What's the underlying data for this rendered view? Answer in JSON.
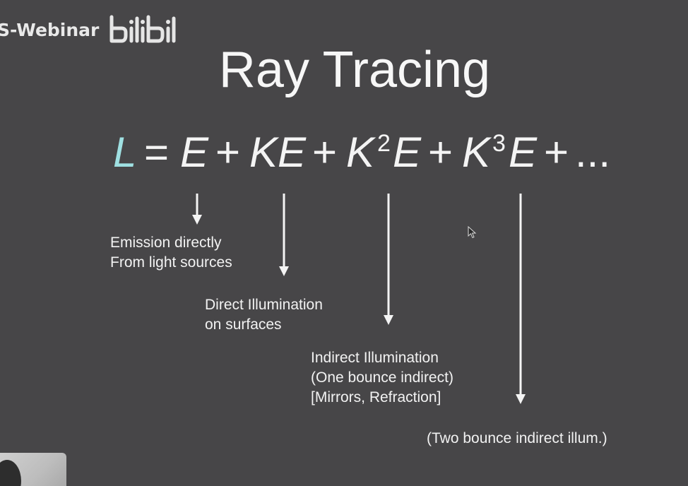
{
  "watermark": {
    "text": "S-Webinar",
    "logo_text": "bilibili"
  },
  "slide": {
    "title": "Ray Tracing",
    "equation": {
      "lhs": "L",
      "equals": "=",
      "terms": [
        {
          "symbol": "E",
          "coef": "",
          "exponent": ""
        },
        {
          "symbol": "E",
          "coef": "K",
          "exponent": ""
        },
        {
          "symbol": "E",
          "coef": "K",
          "exponent": "2"
        },
        {
          "symbol": "E",
          "coef": "K",
          "exponent": "3"
        }
      ],
      "plus": "+",
      "ellipsis": "..."
    },
    "annotations": [
      {
        "lines": [
          "Emission directly",
          "From light sources"
        ]
      },
      {
        "lines": [
          "Direct Illumination",
          "on surfaces"
        ]
      },
      {
        "lines": [
          "Indirect Illumination",
          "(One bounce indirect)",
          "[Mirrors, Refraction]"
        ]
      },
      {
        "lines": [
          "(Two bounce indirect illum.)"
        ]
      }
    ]
  },
  "colors": {
    "background": "#474648",
    "text": "#f4f4f4",
    "L_accent": "#9fe0e2"
  },
  "icons": {
    "cursor": "mouse-pointer-icon",
    "arrow": "arrow-down-icon",
    "logo": "bilibili-logo-icon"
  }
}
